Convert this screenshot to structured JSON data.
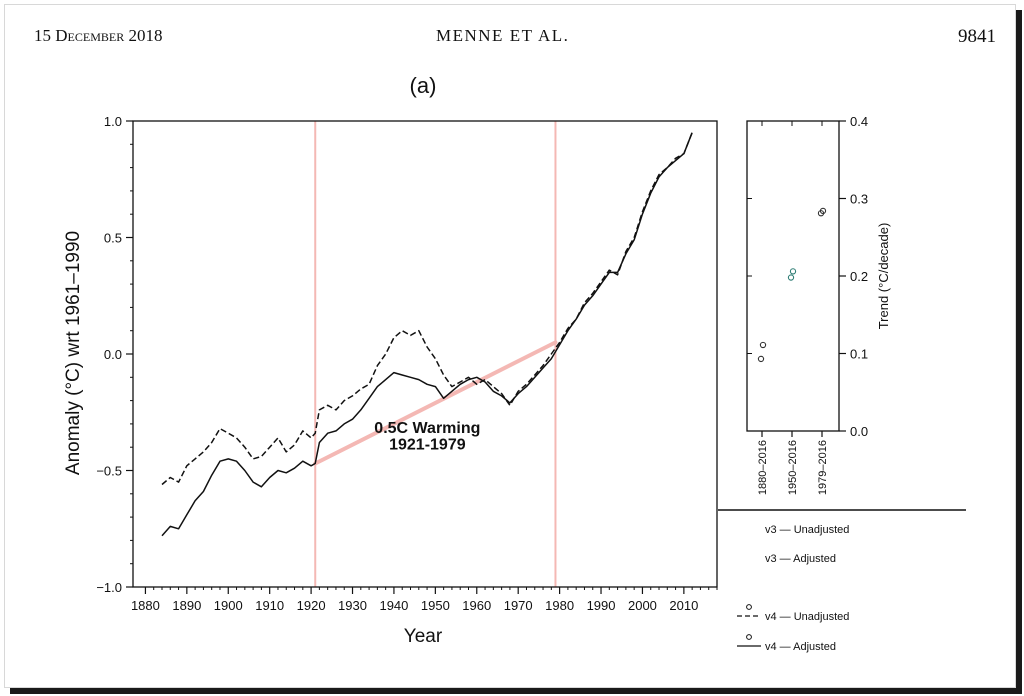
{
  "header": {
    "date": "15 December 2018",
    "authors": "MENNE ET AL.",
    "page_number": "9841"
  },
  "chart_data": [
    {
      "type": "line",
      "panel_label": "(a)",
      "xlabel": "Year",
      "ylabel": "Anomaly (°C) wrt 1961–1990",
      "xlim": [
        1877,
        2018
      ],
      "ylim": [
        -1.0,
        1.0
      ],
      "xticks": [
        1880,
        1890,
        1900,
        1910,
        1920,
        1930,
        1940,
        1950,
        1960,
        1970,
        1980,
        1990,
        2000,
        2010
      ],
      "yticks": [
        -1.0,
        -0.5,
        0.0,
        0.5,
        1.0
      ],
      "ytick_labels": [
        "−1.0",
        "−0.5",
        "0.0",
        "0.5",
        "1.0"
      ],
      "vertical_markers": [
        1921,
        1979
      ],
      "trend_overlay": {
        "from": [
          1921,
          -0.47
        ],
        "to": [
          1979,
          0.05
        ],
        "label_line1": "0.5C Warming",
        "label_line2": "1921-1979",
        "color": "#f4b8b4",
        "label_color": "#ee0000"
      },
      "series": [
        {
          "style": "dashed",
          "x": [
            1884,
            1886,
            1888,
            1890,
            1892,
            1894,
            1896,
            1898,
            1900,
            1902,
            1904,
            1906,
            1908,
            1910,
            1912,
            1914,
            1916,
            1918,
            1920,
            1921,
            1922,
            1924,
            1926,
            1928,
            1930,
            1932,
            1934,
            1936,
            1938,
            1940,
            1942,
            1944,
            1946,
            1948,
            1950,
            1952,
            1954,
            1956,
            1958,
            1960,
            1962,
            1964,
            1966,
            1968,
            1970,
            1972,
            1974,
            1976,
            1978,
            1980,
            1982,
            1984,
            1986,
            1988,
            1990,
            1992,
            1994,
            1996,
            1998,
            2000,
            2002,
            2004,
            2006,
            2008,
            2010,
            2012
          ],
          "values": [
            -0.56,
            -0.53,
            -0.55,
            -0.48,
            -0.45,
            -0.42,
            -0.38,
            -0.32,
            -0.34,
            -0.36,
            -0.4,
            -0.45,
            -0.44,
            -0.4,
            -0.36,
            -0.42,
            -0.39,
            -0.33,
            -0.36,
            -0.34,
            -0.24,
            -0.22,
            -0.24,
            -0.2,
            -0.18,
            -0.15,
            -0.13,
            -0.05,
            0.0,
            0.07,
            0.1,
            0.08,
            0.1,
            0.03,
            -0.02,
            -0.09,
            -0.14,
            -0.12,
            -0.1,
            -0.13,
            -0.11,
            -0.14,
            -0.17,
            -0.22,
            -0.16,
            -0.13,
            -0.09,
            -0.05,
            0.0,
            0.05,
            0.11,
            0.15,
            0.22,
            0.26,
            0.31,
            0.36,
            0.34,
            0.44,
            0.5,
            0.61,
            0.7,
            0.77,
            0.8,
            0.84,
            0.86,
            0.95
          ]
        },
        {
          "style": "solid",
          "x": [
            1884,
            1886,
            1888,
            1890,
            1892,
            1894,
            1896,
            1898,
            1900,
            1902,
            1904,
            1906,
            1908,
            1910,
            1912,
            1914,
            1916,
            1918,
            1920,
            1921,
            1922,
            1924,
            1926,
            1928,
            1930,
            1932,
            1934,
            1936,
            1938,
            1940,
            1942,
            1944,
            1946,
            1948,
            1950,
            1952,
            1954,
            1956,
            1958,
            1960,
            1962,
            1964,
            1966,
            1968,
            1970,
            1972,
            1974,
            1976,
            1978,
            1980,
            1982,
            1984,
            1986,
            1988,
            1990,
            1992,
            1994,
            1996,
            1998,
            2000,
            2002,
            2004,
            2006,
            2008,
            2010,
            2012
          ],
          "values": [
            -0.78,
            -0.74,
            -0.75,
            -0.69,
            -0.63,
            -0.59,
            -0.52,
            -0.46,
            -0.45,
            -0.46,
            -0.5,
            -0.55,
            -0.57,
            -0.53,
            -0.5,
            -0.51,
            -0.49,
            -0.46,
            -0.48,
            -0.47,
            -0.38,
            -0.34,
            -0.33,
            -0.3,
            -0.28,
            -0.24,
            -0.19,
            -0.14,
            -0.11,
            -0.08,
            -0.09,
            -0.1,
            -0.11,
            -0.13,
            -0.14,
            -0.19,
            -0.16,
            -0.13,
            -0.11,
            -0.1,
            -0.12,
            -0.16,
            -0.18,
            -0.21,
            -0.17,
            -0.14,
            -0.1,
            -0.06,
            -0.02,
            0.04,
            0.1,
            0.15,
            0.21,
            0.25,
            0.3,
            0.35,
            0.35,
            0.43,
            0.49,
            0.6,
            0.69,
            0.76,
            0.8,
            0.83,
            0.86,
            0.95
          ]
        }
      ]
    },
    {
      "type": "scatter",
      "ylabel": "Trend (°C/decade)",
      "ylim": [
        0.0,
        0.4
      ],
      "yticks": [
        0.0,
        0.1,
        0.2,
        0.3,
        0.4
      ],
      "ytick_labels": [
        "0.0",
        "0.1",
        "0.2",
        "0.3",
        "0.4"
      ],
      "categories": [
        "1880–2016",
        "1950–2016",
        "1979–2016"
      ],
      "points": [
        {
          "category": 0,
          "offset": 1,
          "value": 0.111,
          "color": "#333333"
        },
        {
          "category": 0,
          "offset": -1,
          "value": 0.093,
          "color": "#333333"
        },
        {
          "category": 1,
          "offset": 1,
          "value": 0.206,
          "color": "#2e7d74"
        },
        {
          "category": 1,
          "offset": -1,
          "value": 0.198,
          "color": "#2e7d74"
        },
        {
          "category": 2,
          "offset": 1,
          "value": 0.284,
          "color": "#333333"
        },
        {
          "category": 2,
          "offset": -1,
          "value": 0.281,
          "color": "#333333"
        }
      ],
      "legend": [
        {
          "marker": "",
          "line": "",
          "label": "v3 — Unadjusted"
        },
        {
          "marker": "",
          "line": "",
          "label": "v3 — Adjusted"
        },
        {
          "marker": "o",
          "line": "dashed",
          "label": "v4 — Unadjusted"
        },
        {
          "marker": "o",
          "line": "solid",
          "label": "v4 — Adjusted"
        }
      ]
    }
  ]
}
